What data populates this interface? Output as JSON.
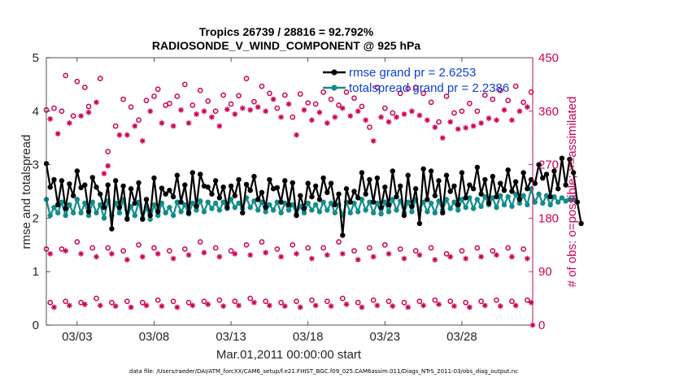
{
  "chart_data": {
    "type": "line",
    "title_line1": "Tropics 26739 / 28816 = 92.792%",
    "title_line2": "RADIOSONDE_V_WIND_COMPONENT @ 925 hPa",
    "xlabel": "Mar.01,2011 00:00:00 start",
    "ylabel_left": "rmse and totalspread",
    "ylabel_right": "# of obs: o=possible; ×=assimilated",
    "ylim_left": [
      0,
      5
    ],
    "ylim_right": [
      0,
      450
    ],
    "xlim": [
      1.0,
      32.6
    ],
    "x_ticks": [
      3,
      8,
      13,
      18,
      23,
      28
    ],
    "x_tick_labels": [
      "03/03",
      "03/08",
      "03/13",
      "03/18",
      "03/23",
      "03/28"
    ],
    "y_left_ticks": [
      0,
      1,
      2,
      3,
      4,
      5
    ],
    "y_left_tick_labels": [
      "0",
      "1",
      "2",
      "3",
      "4",
      "5"
    ],
    "y_right_ticks": [
      0,
      90,
      180,
      270,
      360,
      450
    ],
    "y_right_tick_labels": [
      "0",
      "90",
      "180",
      "270",
      "360",
      "450"
    ],
    "legend": {
      "location": "top-right",
      "entries": [
        "rmse grand pr = 2.6253",
        "totalspread grand pr = 2.2386"
      ]
    },
    "colors": {
      "rmse": "#000000",
      "totalspread": "#138c8c",
      "obs": "#cc0058",
      "legend_text": "#0b3fd6",
      "axes": "#262626"
    },
    "t_start": 1.0,
    "t_step": 0.25,
    "series": [
      {
        "name": "rmse",
        "axis": "left",
        "values": [
          3.02,
          2.58,
          2.72,
          2.25,
          2.7,
          2.18,
          2.64,
          2.42,
          2.88,
          2.57,
          2.62,
          2.12,
          2.76,
          2.58,
          2.45,
          2.2,
          2.62,
          1.8,
          2.7,
          2.2,
          2.6,
          1.98,
          2.55,
          2.28,
          2.66,
          1.98,
          2.35,
          2.05,
          2.75,
          2.12,
          2.56,
          2.45,
          2.52,
          2.4,
          2.8,
          2.3,
          2.62,
          2.1,
          2.85,
          2.22,
          2.82,
          2.6,
          2.58,
          2.45,
          2.7,
          2.38,
          2.58,
          2.2,
          2.6,
          2.42,
          2.72,
          2.1,
          2.63,
          2.52,
          2.78,
          2.35,
          2.48,
          2.2,
          2.72,
          2.55,
          2.57,
          2.3,
          2.7,
          2.25,
          2.66,
          2.05,
          2.42,
          2.18,
          2.65,
          2.4,
          2.6,
          2.35,
          2.75,
          2.48,
          2.65,
          2.25,
          2.45,
          1.68,
          2.55,
          2.3,
          2.5,
          2.38,
          2.85,
          2.45,
          2.72,
          2.3,
          2.75,
          2.2,
          2.58,
          2.25,
          2.88,
          2.4,
          2.6,
          2.05,
          2.8,
          2.22,
          2.55,
          1.9,
          2.92,
          2.35,
          2.88,
          2.42,
          2.7,
          2.1,
          2.8,
          2.5,
          2.6,
          2.25,
          2.85,
          2.38,
          2.62,
          2.55,
          2.95,
          2.45,
          2.72,
          2.28,
          2.78,
          2.4,
          2.65,
          2.52,
          2.9,
          2.5,
          2.68,
          2.35,
          2.85,
          2.55,
          2.72,
          2.65,
          3.0,
          2.75,
          2.82,
          2.4,
          2.88,
          2.55,
          3.12,
          2.62,
          3.1,
          2.85,
          2.3,
          1.9
        ]
      },
      {
        "name": "totalspread",
        "axis": "left",
        "values": [
          2.35,
          2.05,
          2.2,
          2.1,
          2.3,
          2.05,
          2.25,
          2.1,
          2.35,
          2.1,
          2.28,
          2.05,
          2.3,
          2.1,
          2.25,
          2.0,
          2.32,
          2.05,
          2.28,
          2.1,
          2.35,
          2.0,
          2.22,
          2.05,
          2.3,
          2.0,
          2.2,
          1.98,
          2.25,
          2.05,
          2.28,
          2.1,
          2.2,
          2.05,
          2.3,
          2.12,
          2.25,
          2.08,
          2.28,
          2.15,
          2.32,
          2.12,
          2.3,
          2.18,
          2.28,
          2.15,
          2.3,
          2.18,
          2.35,
          2.2,
          2.28,
          2.18,
          2.38,
          2.2,
          2.32,
          2.15,
          2.3,
          2.12,
          2.25,
          2.15,
          2.3,
          2.1,
          2.28,
          2.15,
          2.25,
          2.08,
          2.22,
          2.1,
          2.28,
          2.15,
          2.25,
          2.12,
          2.3,
          2.15,
          2.28,
          2.1,
          2.25,
          2.05,
          2.3,
          2.1,
          2.28,
          2.12,
          2.35,
          2.15,
          2.3,
          2.1,
          2.28,
          2.08,
          2.3,
          2.12,
          2.35,
          2.15,
          2.32,
          2.1,
          2.3,
          2.12,
          2.35,
          2.15,
          2.3,
          2.12,
          2.28,
          2.1,
          2.32,
          2.15,
          2.35,
          2.18,
          2.3,
          2.15,
          2.35,
          2.2,
          2.38,
          2.18,
          2.35,
          2.22,
          2.4,
          2.25,
          2.38,
          2.2,
          2.42,
          2.25,
          2.4,
          2.22,
          2.45,
          2.28,
          2.42,
          2.25,
          2.55,
          2.3,
          2.45,
          2.28,
          2.42,
          2.25,
          2.4,
          2.3,
          2.38,
          2.32,
          2.35,
          2.35
        ]
      }
    ],
    "obs_possible": [
      {
        "x": 1.0,
        "y": 362
      },
      {
        "x": 1.5,
        "y": 365
      },
      {
        "x": 2.0,
        "y": 360
      },
      {
        "x": 2.25,
        "y": 420
      },
      {
        "x": 2.75,
        "y": 352
      },
      {
        "x": 3.0,
        "y": 410
      },
      {
        "x": 3.5,
        "y": 400
      },
      {
        "x": 3.75,
        "y": 368
      },
      {
        "x": 4.5,
        "y": 415
      },
      {
        "x": 5.0,
        "y": 292
      },
      {
        "x": 5.5,
        "y": 335
      },
      {
        "x": 6.0,
        "y": 380
      },
      {
        "x": 6.5,
        "y": 367
      },
      {
        "x": 7.0,
        "y": 345
      },
      {
        "x": 7.5,
        "y": 378
      },
      {
        "x": 8.0,
        "y": 385
      },
      {
        "x": 8.25,
        "y": 397
      },
      {
        "x": 8.75,
        "y": 370
      },
      {
        "x": 9.0,
        "y": 373
      },
      {
        "x": 9.5,
        "y": 385
      },
      {
        "x": 10.0,
        "y": 405
      },
      {
        "x": 10.5,
        "y": 370
      },
      {
        "x": 11.0,
        "y": 395
      },
      {
        "x": 11.5,
        "y": 377
      },
      {
        "x": 12.0,
        "y": 360
      },
      {
        "x": 12.5,
        "y": 387
      },
      {
        "x": 13.0,
        "y": 372
      },
      {
        "x": 13.5,
        "y": 386
      },
      {
        "x": 14.0,
        "y": 415
      },
      {
        "x": 14.5,
        "y": 376
      },
      {
        "x": 15.0,
        "y": 402
      },
      {
        "x": 15.5,
        "y": 390
      },
      {
        "x": 16.0,
        "y": 365
      },
      {
        "x": 16.5,
        "y": 387
      },
      {
        "x": 17.0,
        "y": 350
      },
      {
        "x": 17.5,
        "y": 389
      },
      {
        "x": 18.0,
        "y": 374
      },
      {
        "x": 18.5,
        "y": 372
      },
      {
        "x": 19.0,
        "y": 392
      },
      {
        "x": 19.5,
        "y": 380
      },
      {
        "x": 20.0,
        "y": 370
      },
      {
        "x": 20.5,
        "y": 392
      },
      {
        "x": 21.0,
        "y": 382
      },
      {
        "x": 21.5,
        "y": 368
      },
      {
        "x": 22.0,
        "y": 333
      },
      {
        "x": 22.5,
        "y": 400
      },
      {
        "x": 23.0,
        "y": 365
      },
      {
        "x": 23.5,
        "y": 357
      },
      {
        "x": 24.0,
        "y": 390
      },
      {
        "x": 24.5,
        "y": 398
      },
      {
        "x": 25.0,
        "y": 400
      },
      {
        "x": 25.5,
        "y": 390
      },
      {
        "x": 26.0,
        "y": 375
      },
      {
        "x": 26.5,
        "y": 342
      },
      {
        "x": 27.0,
        "y": 385
      },
      {
        "x": 27.5,
        "y": 357
      },
      {
        "x": 28.0,
        "y": 360
      },
      {
        "x": 28.5,
        "y": 373
      },
      {
        "x": 29.0,
        "y": 360
      },
      {
        "x": 29.5,
        "y": 387
      },
      {
        "x": 30.0,
        "y": 380
      },
      {
        "x": 30.5,
        "y": 395
      },
      {
        "x": 31.0,
        "y": 378
      },
      {
        "x": 31.5,
        "y": 402
      },
      {
        "x": 32.0,
        "y": 375
      },
      {
        "x": 32.5,
        "y": 392
      },
      {
        "x": 1.0,
        "y": 128
      },
      {
        "x": 2.0,
        "y": 128
      },
      {
        "x": 3.0,
        "y": 140
      },
      {
        "x": 4.0,
        "y": 130
      },
      {
        "x": 5.0,
        "y": 130
      },
      {
        "x": 6.0,
        "y": 125
      },
      {
        "x": 7.0,
        "y": 135
      },
      {
        "x": 8.0,
        "y": 130
      },
      {
        "x": 9.0,
        "y": 125
      },
      {
        "x": 10.0,
        "y": 128
      },
      {
        "x": 11.0,
        "y": 140
      },
      {
        "x": 12.0,
        "y": 130
      },
      {
        "x": 13.0,
        "y": 125
      },
      {
        "x": 14.0,
        "y": 135
      },
      {
        "x": 15.0,
        "y": 140
      },
      {
        "x": 16.0,
        "y": 128
      },
      {
        "x": 17.0,
        "y": 135
      },
      {
        "x": 18.0,
        "y": 130
      },
      {
        "x": 19.0,
        "y": 130
      },
      {
        "x": 20.0,
        "y": 140
      },
      {
        "x": 21.0,
        "y": 125
      },
      {
        "x": 22.0,
        "y": 130
      },
      {
        "x": 23.0,
        "y": 135
      },
      {
        "x": 24.0,
        "y": 128
      },
      {
        "x": 25.0,
        "y": 125
      },
      {
        "x": 26.0,
        "y": 130
      },
      {
        "x": 27.0,
        "y": 120
      },
      {
        "x": 28.0,
        "y": 125
      },
      {
        "x": 29.0,
        "y": 130
      },
      {
        "x": 30.0,
        "y": 125
      },
      {
        "x": 31.0,
        "y": 130
      },
      {
        "x": 32.0,
        "y": 128
      },
      {
        "x": 1.25,
        "y": 38
      },
      {
        "x": 2.25,
        "y": 40
      },
      {
        "x": 3.25,
        "y": 38
      },
      {
        "x": 4.25,
        "y": 45
      },
      {
        "x": 5.25,
        "y": 38
      },
      {
        "x": 6.25,
        "y": 40
      },
      {
        "x": 7.25,
        "y": 38
      },
      {
        "x": 8.25,
        "y": 42
      },
      {
        "x": 9.25,
        "y": 40
      },
      {
        "x": 10.25,
        "y": 38
      },
      {
        "x": 11.25,
        "y": 40
      },
      {
        "x": 12.25,
        "y": 42
      },
      {
        "x": 13.25,
        "y": 40
      },
      {
        "x": 14.25,
        "y": 45
      },
      {
        "x": 15.25,
        "y": 40
      },
      {
        "x": 16.25,
        "y": 38
      },
      {
        "x": 17.25,
        "y": 40
      },
      {
        "x": 18.25,
        "y": 42
      },
      {
        "x": 19.25,
        "y": 40
      },
      {
        "x": 20.25,
        "y": 45
      },
      {
        "x": 21.25,
        "y": 38
      },
      {
        "x": 22.25,
        "y": 42
      },
      {
        "x": 23.25,
        "y": 40
      },
      {
        "x": 24.25,
        "y": 38
      },
      {
        "x": 25.25,
        "y": 40
      },
      {
        "x": 26.25,
        "y": 42
      },
      {
        "x": 27.25,
        "y": 40
      },
      {
        "x": 28.25,
        "y": 38
      },
      {
        "x": 29.25,
        "y": 40
      },
      {
        "x": 30.25,
        "y": 42
      },
      {
        "x": 31.25,
        "y": 40
      },
      {
        "x": 32.25,
        "y": 42
      }
    ],
    "obs_assimilated": [
      {
        "x": 1.25,
        "y": 347
      },
      {
        "x": 1.75,
        "y": 322
      },
      {
        "x": 2.5,
        "y": 340
      },
      {
        "x": 3.25,
        "y": 352
      },
      {
        "x": 3.75,
        "y": 358
      },
      {
        "x": 4.25,
        "y": 375
      },
      {
        "x": 4.75,
        "y": 255
      },
      {
        "x": 5.0,
        "y": 268
      },
      {
        "x": 5.75,
        "y": 320
      },
      {
        "x": 6.25,
        "y": 320
      },
      {
        "x": 6.75,
        "y": 335
      },
      {
        "x": 7.25,
        "y": 310
      },
      {
        "x": 7.75,
        "y": 360
      },
      {
        "x": 8.5,
        "y": 340
      },
      {
        "x": 9.25,
        "y": 335
      },
      {
        "x": 9.75,
        "y": 362
      },
      {
        "x": 10.25,
        "y": 340
      },
      {
        "x": 10.75,
        "y": 355
      },
      {
        "x": 11.25,
        "y": 360
      },
      {
        "x": 11.75,
        "y": 350
      },
      {
        "x": 12.25,
        "y": 335
      },
      {
        "x": 12.75,
        "y": 363
      },
      {
        "x": 13.25,
        "y": 355
      },
      {
        "x": 13.75,
        "y": 365
      },
      {
        "x": 14.25,
        "y": 362
      },
      {
        "x": 14.75,
        "y": 367
      },
      {
        "x": 15.25,
        "y": 360
      },
      {
        "x": 15.75,
        "y": 380
      },
      {
        "x": 16.25,
        "y": 350
      },
      {
        "x": 16.75,
        "y": 372
      },
      {
        "x": 17.25,
        "y": 320
      },
      {
        "x": 17.75,
        "y": 362
      },
      {
        "x": 18.25,
        "y": 345
      },
      {
        "x": 18.75,
        "y": 358
      },
      {
        "x": 19.25,
        "y": 340
      },
      {
        "x": 19.75,
        "y": 350
      },
      {
        "x": 20.25,
        "y": 365
      },
      {
        "x": 20.75,
        "y": 352
      },
      {
        "x": 21.25,
        "y": 360
      },
      {
        "x": 21.75,
        "y": 345
      },
      {
        "x": 22.25,
        "y": 310
      },
      {
        "x": 22.75,
        "y": 350
      },
      {
        "x": 23.25,
        "y": 342
      },
      {
        "x": 23.75,
        "y": 350
      },
      {
        "x": 24.25,
        "y": 355
      },
      {
        "x": 24.75,
        "y": 360
      },
      {
        "x": 25.25,
        "y": 353
      },
      {
        "x": 25.75,
        "y": 345
      },
      {
        "x": 26.25,
        "y": 333
      },
      {
        "x": 26.75,
        "y": 315
      },
      {
        "x": 27.25,
        "y": 342
      },
      {
        "x": 27.75,
        "y": 330
      },
      {
        "x": 28.25,
        "y": 332
      },
      {
        "x": 28.75,
        "y": 335
      },
      {
        "x": 29.25,
        "y": 340
      },
      {
        "x": 29.75,
        "y": 348
      },
      {
        "x": 30.25,
        "y": 345
      },
      {
        "x": 30.75,
        "y": 362
      },
      {
        "x": 31.25,
        "y": 345
      },
      {
        "x": 31.75,
        "y": 360
      },
      {
        "x": 32.25,
        "y": 367
      },
      {
        "x": 1.25,
        "y": 120
      },
      {
        "x": 2.25,
        "y": 125
      },
      {
        "x": 3.25,
        "y": 120
      },
      {
        "x": 4.25,
        "y": 115
      },
      {
        "x": 5.25,
        "y": 120
      },
      {
        "x": 6.25,
        "y": 110
      },
      {
        "x": 7.25,
        "y": 115
      },
      {
        "x": 8.25,
        "y": 120
      },
      {
        "x": 9.25,
        "y": 112
      },
      {
        "x": 10.25,
        "y": 118
      },
      {
        "x": 11.25,
        "y": 122
      },
      {
        "x": 12.25,
        "y": 115
      },
      {
        "x": 13.25,
        "y": 120
      },
      {
        "x": 14.25,
        "y": 118
      },
      {
        "x": 15.25,
        "y": 122
      },
      {
        "x": 16.25,
        "y": 115
      },
      {
        "x": 17.25,
        "y": 120
      },
      {
        "x": 18.25,
        "y": 112
      },
      {
        "x": 19.25,
        "y": 118
      },
      {
        "x": 20.25,
        "y": 120
      },
      {
        "x": 21.25,
        "y": 110
      },
      {
        "x": 22.25,
        "y": 115
      },
      {
        "x": 23.25,
        "y": 120
      },
      {
        "x": 24.25,
        "y": 112
      },
      {
        "x": 25.25,
        "y": 118
      },
      {
        "x": 26.25,
        "y": 110
      },
      {
        "x": 27.25,
        "y": 115
      },
      {
        "x": 28.25,
        "y": 112
      },
      {
        "x": 29.25,
        "y": 115
      },
      {
        "x": 30.25,
        "y": 118
      },
      {
        "x": 31.25,
        "y": 115
      },
      {
        "x": 32.25,
        "y": 112
      },
      {
        "x": 1.5,
        "y": 30
      },
      {
        "x": 2.5,
        "y": 33
      },
      {
        "x": 3.5,
        "y": 35
      },
      {
        "x": 4.5,
        "y": 33
      },
      {
        "x": 5.5,
        "y": 32
      },
      {
        "x": 6.5,
        "y": 30
      },
      {
        "x": 7.5,
        "y": 33
      },
      {
        "x": 8.5,
        "y": 32
      },
      {
        "x": 9.5,
        "y": 30
      },
      {
        "x": 10.5,
        "y": 33
      },
      {
        "x": 11.5,
        "y": 35
      },
      {
        "x": 12.5,
        "y": 32
      },
      {
        "x": 13.5,
        "y": 33
      },
      {
        "x": 14.5,
        "y": 38
      },
      {
        "x": 15.5,
        "y": 33
      },
      {
        "x": 16.5,
        "y": 32
      },
      {
        "x": 17.5,
        "y": 30
      },
      {
        "x": 18.5,
        "y": 33
      },
      {
        "x": 19.5,
        "y": 32
      },
      {
        "x": 20.5,
        "y": 35
      },
      {
        "x": 21.5,
        "y": 30
      },
      {
        "x": 22.5,
        "y": 33
      },
      {
        "x": 23.5,
        "y": 32
      },
      {
        "x": 24.5,
        "y": 30
      },
      {
        "x": 25.5,
        "y": 33
      },
      {
        "x": 26.5,
        "y": 35
      },
      {
        "x": 27.5,
        "y": 32
      },
      {
        "x": 28.5,
        "y": 30
      },
      {
        "x": 29.5,
        "y": 33
      },
      {
        "x": 30.5,
        "y": 32
      },
      {
        "x": 31.5,
        "y": 33
      },
      {
        "x": 32.5,
        "y": 38
      },
      {
        "x": 32.6,
        "y": 0
      }
    ],
    "footnote": "data file: /Users/raeder/DAI/ATM_forcXX/CAM6_setup/f.e21.FHIST_BGC.f09_025.CAM6assim.011/Diags_NTrS_2011-03/obs_diag_output.nc"
  }
}
